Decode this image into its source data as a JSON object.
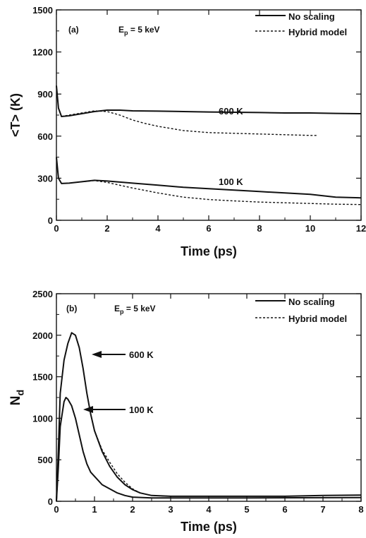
{
  "chart_data": [
    {
      "type": "line",
      "panel_label": "(a)",
      "energy_label": {
        "prefix": "E",
        "sub": "p",
        "suffix": " = 5 keV"
      },
      "xlabel": "Time (ps)",
      "ylabel": "<T> (K)",
      "xlim": [
        0,
        12
      ],
      "ylim": [
        0,
        1500
      ],
      "xticks": [
        0,
        2,
        4,
        6,
        8,
        10,
        12
      ],
      "yticks": [
        0,
        300,
        600,
        900,
        1200,
        1500
      ],
      "legend": {
        "position": "top-right",
        "entries": [
          "No scaling",
          "Hybrid model"
        ]
      },
      "annotations": [
        "600 K",
        "100 K"
      ],
      "series": [
        {
          "name": "No scaling",
          "style": "solid",
          "points": [
            [
              0,
              960
            ],
            [
              0.08,
              800
            ],
            [
              0.2,
              740
            ],
            [
              0.5,
              745
            ],
            [
              1,
              760
            ],
            [
              1.5,
              775
            ],
            [
              2,
              785
            ],
            [
              2.5,
              785
            ],
            [
              3,
              780
            ],
            [
              4,
              778
            ],
            [
              5,
              775
            ],
            [
              6,
              772
            ],
            [
              7,
              770
            ],
            [
              8,
              768
            ],
            [
              9,
              765
            ],
            [
              10,
              765
            ],
            [
              11,
              762
            ],
            [
              12,
              760
            ]
          ]
        },
        {
          "name": "Hybrid model",
          "style": "dashed",
          "points": [
            [
              0.2,
              740
            ],
            [
              0.5,
              750
            ],
            [
              1,
              765
            ],
            [
              1.5,
              780
            ],
            [
              2,
              775
            ],
            [
              2.5,
              750
            ],
            [
              3,
              715
            ],
            [
              3.5,
              690
            ],
            [
              4,
              670
            ],
            [
              5,
              640
            ],
            [
              6,
              625
            ],
            [
              7,
              620
            ],
            [
              8,
              615
            ],
            [
              9,
              610
            ],
            [
              10,
              605
            ],
            [
              10.3,
              605
            ]
          ]
        },
        {
          "name": "No scaling",
          "style": "solid",
          "points": [
            [
              0,
              450
            ],
            [
              0.08,
              300
            ],
            [
              0.2,
              262
            ],
            [
              0.5,
              265
            ],
            [
              1,
              275
            ],
            [
              1.5,
              285
            ],
            [
              2,
              280
            ],
            [
              3,
              265
            ],
            [
              4,
              250
            ],
            [
              5,
              235
            ],
            [
              6,
              225
            ],
            [
              7,
              215
            ],
            [
              8,
              205
            ],
            [
              9,
              195
            ],
            [
              10,
              185
            ],
            [
              11,
              165
            ],
            [
              12,
              160
            ]
          ]
        },
        {
          "name": "Hybrid model",
          "style": "dashed",
          "points": [
            [
              0.2,
              262
            ],
            [
              0.5,
              265
            ],
            [
              1,
              275
            ],
            [
              1.5,
              283
            ],
            [
              2,
              270
            ],
            [
              3,
              230
            ],
            [
              4,
              195
            ],
            [
              5,
              165
            ],
            [
              6,
              148
            ],
            [
              7,
              138
            ],
            [
              8,
              130
            ],
            [
              9,
              125
            ],
            [
              10,
              120
            ],
            [
              11,
              115
            ],
            [
              12,
              112
            ]
          ]
        }
      ]
    },
    {
      "type": "line",
      "panel_label": "(b)",
      "energy_label": {
        "prefix": "E",
        "sub": "p",
        "suffix": " = 5 keV"
      },
      "xlabel": "Time (ps)",
      "ylabel": {
        "main": "N",
        "sub": "d"
      },
      "xlim": [
        0,
        8
      ],
      "ylim": [
        0,
        2500
      ],
      "xticks": [
        0,
        1,
        2,
        3,
        4,
        5,
        6,
        7,
        8
      ],
      "yticks": [
        0,
        500,
        1000,
        1500,
        2000,
        2500
      ],
      "legend": {
        "position": "top-right",
        "entries": [
          "No scaling",
          "Hybrid model"
        ]
      },
      "annotations": [
        "600 K",
        "100 K"
      ],
      "series": [
        {
          "name": "No scaling",
          "style": "solid",
          "points": [
            [
              0,
              0
            ],
            [
              0.05,
              600
            ],
            [
              0.1,
              1300
            ],
            [
              0.2,
              1700
            ],
            [
              0.3,
              1900
            ],
            [
              0.4,
              2030
            ],
            [
              0.5,
              2000
            ],
            [
              0.6,
              1850
            ],
            [
              0.7,
              1600
            ],
            [
              0.8,
              1300
            ],
            [
              0.9,
              1050
            ],
            [
              1,
              850
            ],
            [
              1.2,
              600
            ],
            [
              1.4,
              420
            ],
            [
              1.6,
              290
            ],
            [
              1.8,
              200
            ],
            [
              2,
              140
            ],
            [
              2.2,
              100
            ],
            [
              2.5,
              70
            ],
            [
              3,
              60
            ],
            [
              4,
              60
            ],
            [
              5,
              60
            ],
            [
              6,
              60
            ],
            [
              7,
              70
            ],
            [
              8,
              75
            ]
          ]
        },
        {
          "name": "Hybrid model",
          "style": "dashed",
          "points": [
            [
              1,
              850
            ],
            [
              1.2,
              620
            ],
            [
              1.4,
              470
            ],
            [
              1.6,
              330
            ],
            [
              1.8,
              230
            ],
            [
              2,
              150
            ],
            [
              2.2,
              100
            ],
            [
              2.5,
              70
            ],
            [
              3,
              60
            ]
          ]
        },
        {
          "name": "No scaling",
          "style": "solid",
          "points": [
            [
              0,
              0
            ],
            [
              0.05,
              400
            ],
            [
              0.1,
              900
            ],
            [
              0.2,
              1200
            ],
            [
              0.25,
              1250
            ],
            [
              0.3,
              1230
            ],
            [
              0.4,
              1150
            ],
            [
              0.5,
              1000
            ],
            [
              0.6,
              800
            ],
            [
              0.7,
              600
            ],
            [
              0.8,
              450
            ],
            [
              0.9,
              350
            ],
            [
              1,
              300
            ],
            [
              1.2,
              200
            ],
            [
              1.4,
              150
            ],
            [
              1.6,
              100
            ],
            [
              1.8,
              70
            ],
            [
              2,
              50
            ],
            [
              2.5,
              40
            ],
            [
              3,
              40
            ],
            [
              5,
              40
            ],
            [
              8,
              45
            ]
          ]
        }
      ]
    }
  ]
}
